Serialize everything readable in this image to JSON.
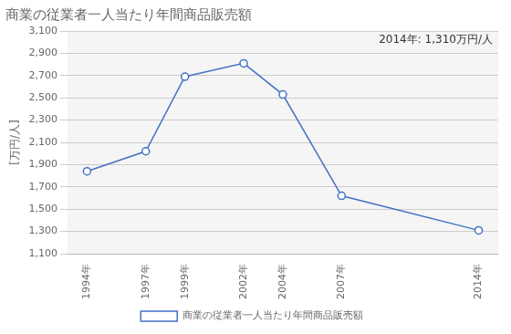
{
  "chart_data": {
    "type": "line",
    "title": "商業の従業者一人当たり年間商品販売額",
    "ylabel": "[万円/人]",
    "annotation": "2014年: 1,310万円/人",
    "x": [
      1994,
      1997,
      1999,
      2002,
      2004,
      2007,
      2014
    ],
    "series": [
      {
        "name": "商業の従業者一人当たり年間商品販売額",
        "color": "#4472C4",
        "marker": "circle",
        "values": [
          1840,
          2020,
          2690,
          2810,
          2530,
          1620,
          1310
        ]
      }
    ],
    "xlim": [
      1993,
      2015
    ],
    "xticks": [
      {
        "value": 1994,
        "label": "1994年"
      },
      {
        "value": 1997,
        "label": "1997年"
      },
      {
        "value": 1999,
        "label": "1999年"
      },
      {
        "value": 2002,
        "label": "2002年"
      },
      {
        "value": 2004,
        "label": "2004年"
      },
      {
        "value": 2007,
        "label": "2007年"
      },
      {
        "value": 2014,
        "label": "2014年"
      }
    ],
    "ylim": [
      1100,
      3100
    ],
    "yticks": [
      {
        "value": 1100,
        "label": "1,100"
      },
      {
        "value": 1300,
        "label": "1,300"
      },
      {
        "value": 1500,
        "label": "1,500"
      },
      {
        "value": 1700,
        "label": "1,700"
      },
      {
        "value": 1900,
        "label": "1,900"
      },
      {
        "value": 2100,
        "label": "2,100"
      },
      {
        "value": 2300,
        "label": "2,300"
      },
      {
        "value": 2500,
        "label": "2,500"
      },
      {
        "value": 2700,
        "label": "2,700"
      },
      {
        "value": 2900,
        "label": "2,900"
      },
      {
        "value": 3100,
        "label": "3,100"
      }
    ],
    "grid": true,
    "legend": "bottom"
  }
}
